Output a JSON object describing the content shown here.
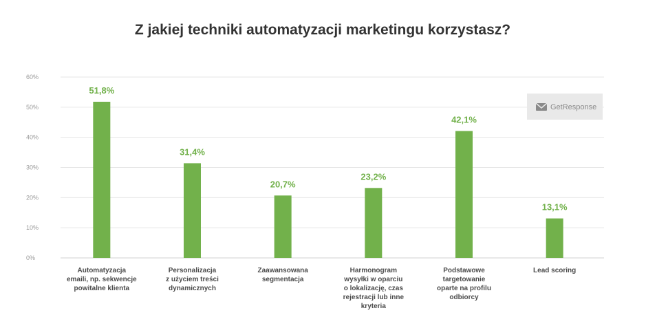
{
  "chart_data": {
    "type": "bar",
    "title": "Z jakiej techniki automatyzacji marketingu korzystasz?",
    "categories": [
      "Automatyzacja emaili, np. sekwencje powitalne klienta",
      "Personalizacja z użyciem treści dynamicznych",
      "Zaawansowana segmentacja",
      "Harmonogram wysyłki w oparciu o lokalizację, czas rejestracji lub inne kryteria",
      "Podstawowe targetowanie oparte na profilu odbiorcy",
      "Lead scoring"
    ],
    "category_lines": [
      [
        "Automatyzacja",
        "emaili, np. sekwencje",
        "powitalne klienta"
      ],
      [
        "Personalizacja",
        "z użyciem treści",
        "dynamicznych"
      ],
      [
        "Zaawansowana",
        "segmentacja"
      ],
      [
        "Harmonogram",
        "wysyłki w oparciu",
        "o lokalizację, czas",
        "rejestracji lub inne",
        "kryteria"
      ],
      [
        "Podstawowe",
        "targetowanie",
        "oparte na profilu",
        "odbiorcy"
      ],
      [
        "Lead scoring"
      ]
    ],
    "values": [
      51.8,
      31.4,
      20.7,
      23.2,
      42.1,
      13.1
    ],
    "value_labels": [
      "51,8%",
      "31,4%",
      "20,7%",
      "23,2%",
      "42,1%",
      "13,1%"
    ],
    "yticks": [
      0,
      10,
      20,
      30,
      40,
      50,
      60
    ],
    "ytick_labels": [
      "0%",
      "10%",
      "20%",
      "30%",
      "40%",
      "50%",
      "60%"
    ],
    "ylim": [
      0,
      60
    ],
    "grid": true,
    "xlabel": "",
    "ylabel": "",
    "bar_color": "#72b14b"
  },
  "logo": {
    "text": "GetResponse",
    "icon": "envelope-icon"
  }
}
